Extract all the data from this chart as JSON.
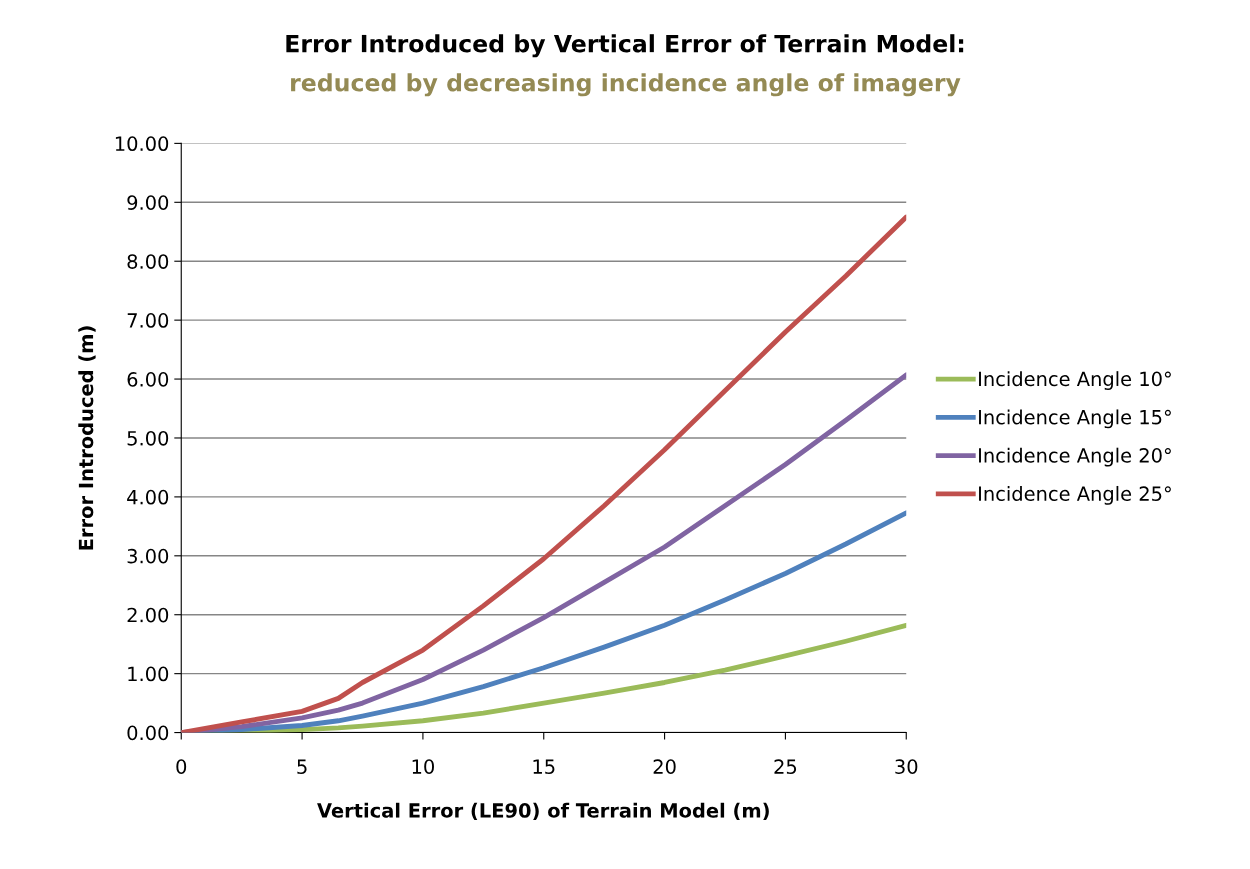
{
  "chart_data": {
    "type": "line",
    "title": "Error Introduced by Vertical Error of Terrain Model:",
    "subtitle": "reduced by decreasing incidence angle of imagery",
    "xlabel": "Vertical Error (LE90) of Terrain Model (m)",
    "ylabel": "Error Introduced (m)",
    "x": [
      0,
      2.5,
      5,
      6.5,
      7.5,
      10,
      12.5,
      15,
      17.5,
      20,
      22.5,
      25,
      27.5,
      30
    ],
    "series": [
      {
        "name": "Incidence Angle 10°",
        "color": "#9bbb59",
        "values": [
          0,
          0.02,
          0.05,
          0.08,
          0.11,
          0.2,
          0.33,
          0.5,
          0.67,
          0.85,
          1.06,
          1.3,
          1.55,
          1.82
        ]
      },
      {
        "name": "Incidence Angle 15°",
        "color": "#4f81bd",
        "values": [
          0,
          0.05,
          0.12,
          0.2,
          0.28,
          0.5,
          0.78,
          1.1,
          1.45,
          1.82,
          2.25,
          2.7,
          3.2,
          3.73
        ]
      },
      {
        "name": "Incidence Angle 20°",
        "color": "#8064a2",
        "values": [
          0,
          0.1,
          0.25,
          0.38,
          0.5,
          0.9,
          1.4,
          1.95,
          2.55,
          3.15,
          3.85,
          4.55,
          5.3,
          6.07
        ]
      },
      {
        "name": "Incidence Angle 25°",
        "color": "#c0504d",
        "values": [
          0,
          0.18,
          0.36,
          0.58,
          0.85,
          1.4,
          2.15,
          2.95,
          3.85,
          4.8,
          5.8,
          6.8,
          7.75,
          8.75
        ]
      }
    ],
    "xlim": [
      0,
      30
    ],
    "xticks": [
      0,
      5,
      10,
      15,
      20,
      25,
      30
    ],
    "ylim": [
      0,
      10
    ],
    "yticks": [
      {
        "value": 0,
        "label": "0.00"
      },
      {
        "value": 1,
        "label": "1.00"
      },
      {
        "value": 2,
        "label": "2.00"
      },
      {
        "value": 3,
        "label": "3.00"
      },
      {
        "value": 4,
        "label": "4.00"
      },
      {
        "value": 5,
        "label": "5.00"
      },
      {
        "value": 6,
        "label": "6.00"
      },
      {
        "value": 7,
        "label": "7.00"
      },
      {
        "value": 8,
        "label": "8.00"
      },
      {
        "value": 9,
        "label": "9.00"
      },
      {
        "value": 10,
        "label": "10.00"
      }
    ],
    "grid": "y",
    "legend": "right",
    "marker": "none",
    "line_style": "solid"
  }
}
